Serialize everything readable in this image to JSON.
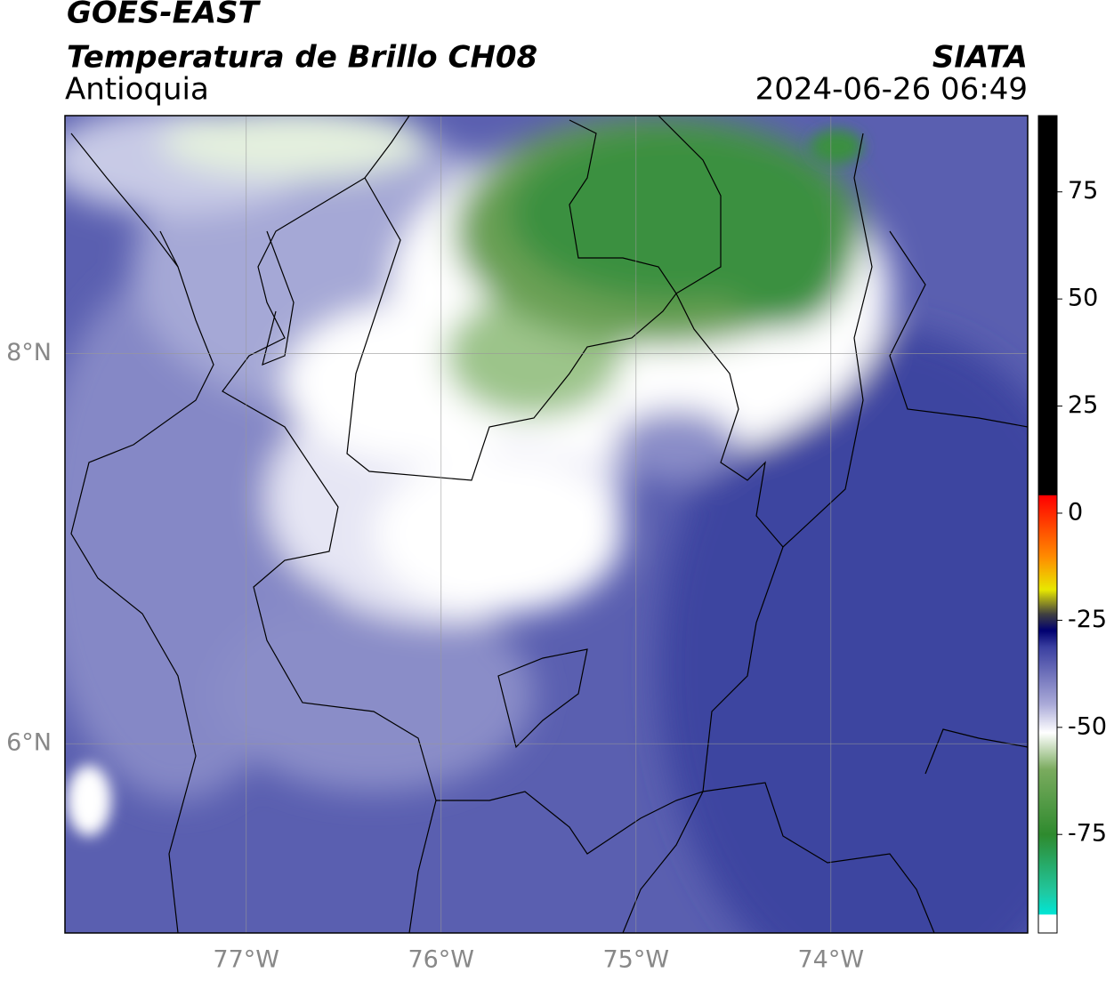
{
  "header": {
    "title": "GOES-EAST",
    "subtitle": "Temperatura de Brillo CH08",
    "region": "Antioquia",
    "source": "SIATA",
    "timestamp": "2024-06-26 06:49"
  },
  "map": {
    "xlim": [
      -77.93,
      -72.99
    ],
    "ylim": [
      5.03,
      9.22
    ],
    "xticks": [
      {
        "value": -77,
        "label": "77°W"
      },
      {
        "value": -76,
        "label": "76°W"
      },
      {
        "value": -75,
        "label": "75°W"
      },
      {
        "value": -74,
        "label": "74°W"
      }
    ],
    "yticks": [
      {
        "value": 8,
        "label": "8°N"
      },
      {
        "value": 6,
        "label": "6°N"
      }
    ]
  },
  "colorbar": {
    "lim": [
      -98,
      92.8
    ],
    "ticks": [
      75,
      50,
      25,
      0,
      -25,
      -50,
      -75
    ]
  }
}
